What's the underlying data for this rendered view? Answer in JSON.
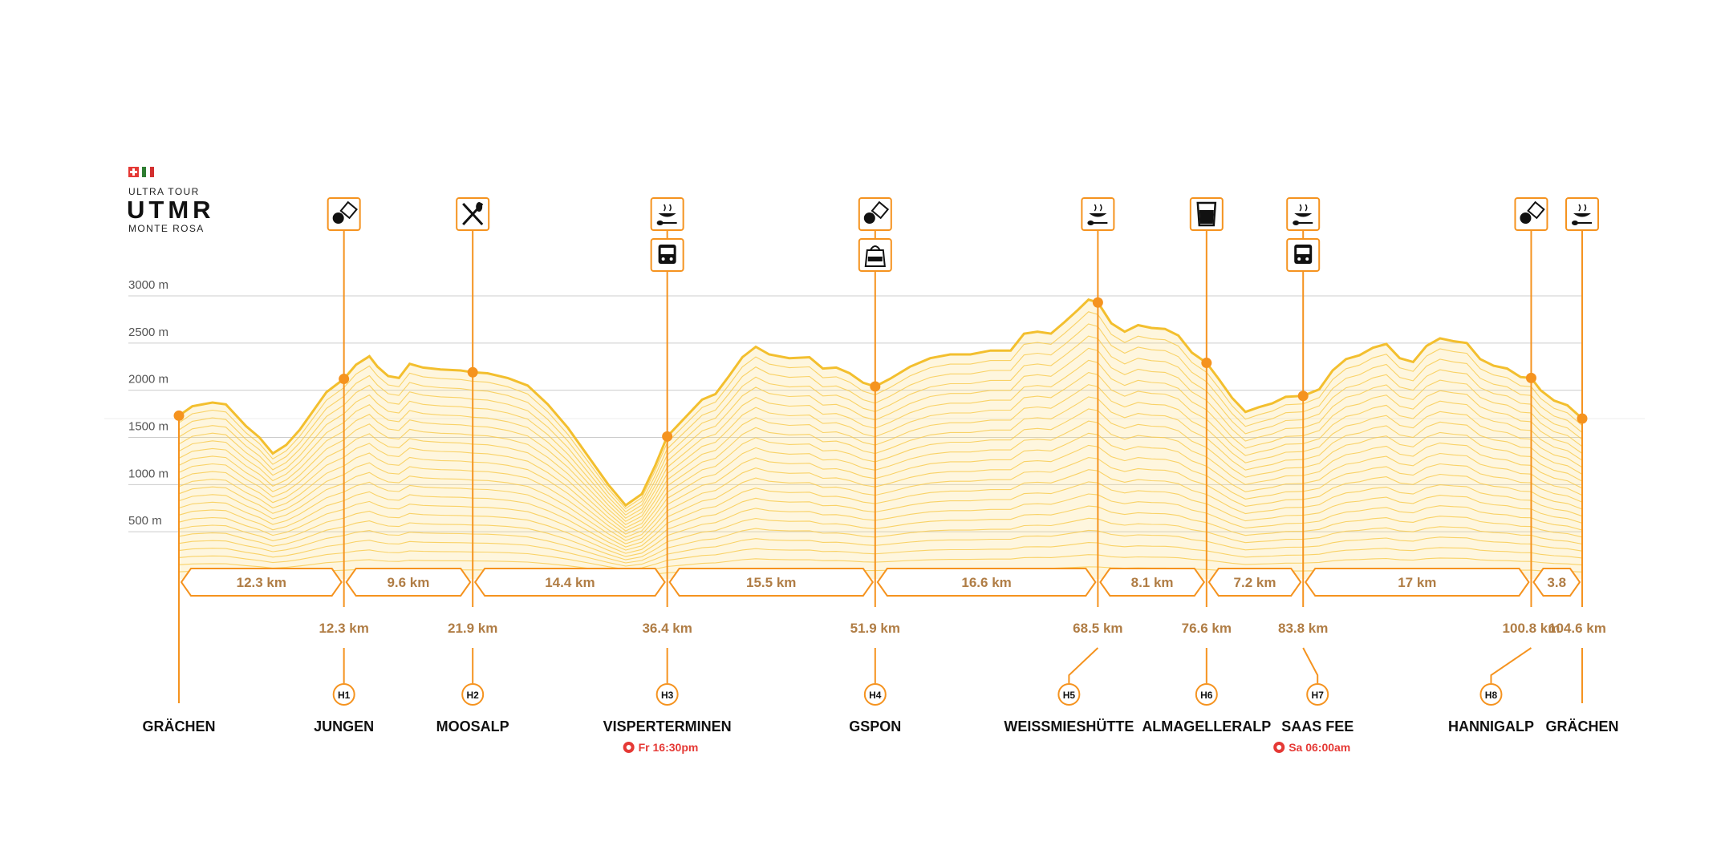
{
  "logo": {
    "line1": "ULTRA TOUR",
    "brand": "UTMR",
    "line3": "MONTE ROSA",
    "flags": [
      "switzerland-flag",
      "italy-flag"
    ]
  },
  "colors": {
    "accent": "#f5931f",
    "fill": "#fde08a",
    "contour": "#f7c948",
    "text_brown": "#b07d45",
    "alert": "#e53935",
    "grid": "#cccccc",
    "label": "#111111"
  },
  "chart_data": {
    "type": "area",
    "title": "",
    "xlabel": "",
    "ylabel": "",
    "xlim": [
      0,
      104.6
    ],
    "ylim": [
      0,
      3000
    ],
    "y_ticks": [
      {
        "value": 500,
        "label": "500 m"
      },
      {
        "value": 1000,
        "label": "1000 m"
      },
      {
        "value": 1500,
        "label": "1500 m"
      },
      {
        "value": 2000,
        "label": "2000 m"
      },
      {
        "value": 2500,
        "label": "2500 m"
      },
      {
        "value": 3000,
        "label": "3000 m"
      }
    ],
    "grid": true,
    "profile": {
      "x": [
        0,
        1,
        2.5,
        3.5,
        5,
        6,
        7,
        8,
        9,
        10,
        11,
        12.3,
        13.2,
        14.2,
        14.8,
        15.6,
        16.4,
        17.2,
        18.2,
        19.5,
        21,
        21.9,
        23,
        24.5,
        26,
        27.5,
        29,
        30.5,
        32,
        33.3,
        34.5,
        35.5,
        36.4,
        37.8,
        39,
        40,
        41,
        42,
        43,
        44,
        45.5,
        47,
        48,
        49,
        50,
        51,
        51.9,
        53,
        54.5,
        56,
        57.5,
        59,
        60.5,
        62,
        63,
        64,
        65,
        66,
        67,
        67.8,
        68.5,
        69.5,
        70.5,
        71.5,
        72.5,
        73.5,
        74.5,
        75.5,
        76.6,
        77.5,
        78.5,
        79.5,
        80.5,
        81.5,
        82.5,
        83.8,
        85,
        86,
        87,
        88,
        89,
        90,
        91,
        92,
        93,
        94,
        95,
        96,
        97,
        98,
        99,
        100,
        100.8,
        101.5,
        102.5,
        103.5,
        104.6
      ],
      "y": [
        1730,
        1830,
        1870,
        1850,
        1620,
        1500,
        1330,
        1420,
        1580,
        1780,
        1980,
        2120,
        2270,
        2360,
        2250,
        2150,
        2130,
        2280,
        2240,
        2220,
        2210,
        2190,
        2180,
        2130,
        2050,
        1850,
        1600,
        1300,
        1000,
        780,
        900,
        1200,
        1510,
        1720,
        1900,
        1960,
        2150,
        2350,
        2460,
        2380,
        2340,
        2350,
        2230,
        2240,
        2180,
        2080,
        2040,
        2120,
        2250,
        2340,
        2380,
        2380,
        2420,
        2420,
        2600,
        2620,
        2600,
        2720,
        2850,
        2960,
        2930,
        2710,
        2620,
        2690,
        2660,
        2650,
        2580,
        2400,
        2290,
        2120,
        1920,
        1770,
        1820,
        1860,
        1930,
        1940,
        2010,
        2210,
        2330,
        2370,
        2450,
        2490,
        2340,
        2300,
        2470,
        2550,
        2520,
        2500,
        2330,
        2260,
        2230,
        2140,
        2130,
        2000,
        1890,
        1840,
        1700
      ]
    },
    "segments": [
      {
        "from": 0,
        "to": 12.3,
        "label": "12.3 km"
      },
      {
        "from": 12.3,
        "to": 21.9,
        "label": "9.6 km"
      },
      {
        "from": 21.9,
        "to": 36.4,
        "label": "14.4 km"
      },
      {
        "from": 36.4,
        "to": 51.9,
        "label": "15.5 km"
      },
      {
        "from": 51.9,
        "to": 68.5,
        "label": "16.6 km"
      },
      {
        "from": 68.5,
        "to": 76.6,
        "label": "8.1 km"
      },
      {
        "from": 76.6,
        "to": 83.8,
        "label": "7.2 km"
      },
      {
        "from": 83.8,
        "to": 100.8,
        "label": "17 km"
      },
      {
        "from": 100.8,
        "to": 104.6,
        "label": "3.8"
      }
    ],
    "stations": [
      {
        "name": "GRÄCHEN",
        "km": 0,
        "elev": 1730,
        "km_label": "",
        "hut": "",
        "icons": []
      },
      {
        "name": "JUNGEN",
        "km": 12.3,
        "elev": 2120,
        "km_label": "12.3 km",
        "hut": "H1",
        "icons": [
          "snack-icon"
        ]
      },
      {
        "name": "MOOSALP",
        "km": 21.9,
        "elev": 2190,
        "km_label": "21.9 km",
        "hut": "H2",
        "icons": [
          "restaurant-icon"
        ]
      },
      {
        "name": "VISPERTERMINEN",
        "km": 36.4,
        "elev": 1510,
        "km_label": "36.4 km",
        "hut": "H3",
        "icons": [
          "hot-meal-icon",
          "bus-icon"
        ],
        "cutoff": "Fr 16:30pm"
      },
      {
        "name": "GSPON",
        "km": 51.9,
        "elev": 2040,
        "km_label": "51.9 km",
        "hut": "H4",
        "icons": [
          "snack-icon",
          "drop-bag-icon"
        ]
      },
      {
        "name": "WEISSMIESHÜTTE",
        "km": 68.5,
        "elev": 2930,
        "km_label": "68.5 km",
        "hut": "H5",
        "icons": [
          "hot-meal-icon"
        ]
      },
      {
        "name": "ALMAGELLERALP",
        "km": 76.6,
        "elev": 2290,
        "km_label": "76.6 km",
        "hut": "H6",
        "icons": [
          "water-icon"
        ]
      },
      {
        "name": "SAAS FEE",
        "km": 83.8,
        "elev": 1940,
        "km_label": "83.8 km",
        "hut": "H7",
        "icons": [
          "hot-meal-icon",
          "bus-icon"
        ],
        "cutoff": "Sa 06:00am"
      },
      {
        "name": "HANNIGALP",
        "km": 100.8,
        "elev": 2130,
        "km_label": "100.8 km",
        "hut": "H8",
        "icons": [
          "snack-icon"
        ]
      },
      {
        "name": "GRÄCHEN",
        "km": 104.6,
        "elev": 1700,
        "km_label": "104.6 km",
        "hut": "",
        "icons": [
          "hot-meal-icon"
        ]
      }
    ]
  }
}
